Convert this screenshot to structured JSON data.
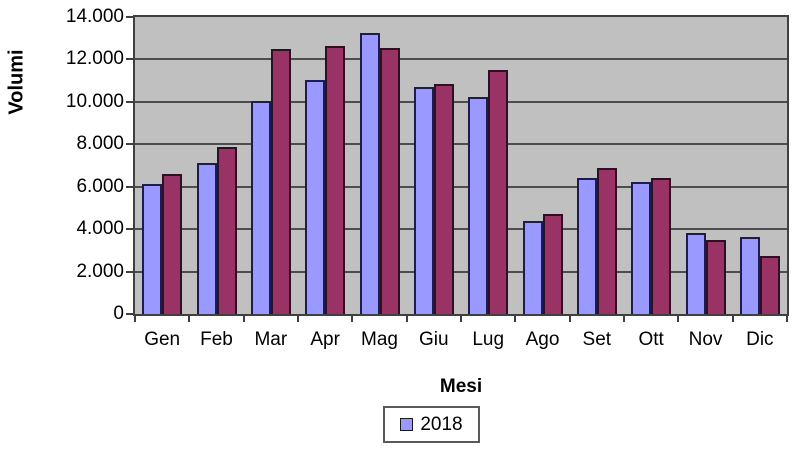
{
  "chart_data": {
    "type": "bar",
    "title": "",
    "ylabel": "Volumi",
    "xlabel": "Mesi",
    "categories": [
      "Gen",
      "Feb",
      "Mar",
      "Apr",
      "Mag",
      "Giu",
      "Lug",
      "Ago",
      "Set",
      "Ott",
      "Nov",
      "Dic"
    ],
    "series": [
      {
        "name": "2018",
        "color": "#9999ff",
        "border_color": "#1c1c50",
        "values": [
          6150,
          7100,
          10050,
          11050,
          13250,
          10700,
          10250,
          4400,
          6400,
          6200,
          3800,
          3650
        ]
      },
      {
        "name": "",
        "color": "#993366",
        "border_color": "#2e1022",
        "values": [
          6600,
          7850,
          12500,
          12650,
          12550,
          10850,
          11500,
          4700,
          6900,
          6400,
          3500,
          2750
        ]
      }
    ],
    "ylim": [
      0,
      14000
    ],
    "ytick_step": 2000,
    "ytick_labels": [
      "0",
      "2.000",
      "4.000",
      "6.000",
      "8.000",
      "10.000",
      "12.000",
      "14.000"
    ],
    "grid": true,
    "legend": {
      "position": "bottom",
      "entries": [
        {
          "label": "2018",
          "color": "#9999ff"
        }
      ]
    },
    "colors": {
      "plot_bg": "#c0c0c0",
      "gridline": "#4d4d4d",
      "axis_border": "#404040"
    }
  }
}
